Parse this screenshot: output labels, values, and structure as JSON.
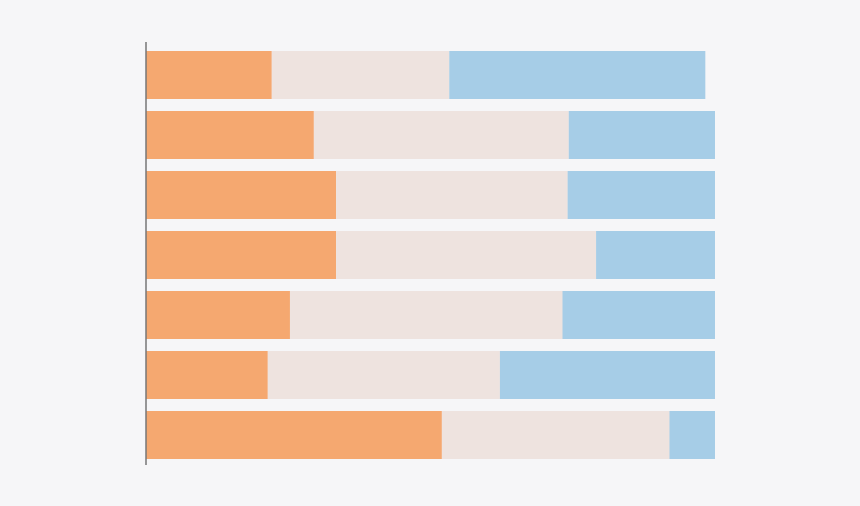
{
  "chart_data": {
    "type": "bar",
    "orientation": "horizontal",
    "stacked": true,
    "title": "",
    "xlabel": "",
    "ylabel": "",
    "legend": "none",
    "grid": false,
    "xlim": [
      0,
      100
    ],
    "categories": [
      "",
      "",
      "",
      "",
      "",
      "",
      ""
    ],
    "series": [
      {
        "color": "#f5a870",
        "values": [
          22.1,
          29.5,
          33.4,
          33.4,
          25.3,
          21.4,
          52
        ]
      },
      {
        "color": "#eee3df",
        "values": [
          31.2,
          44.8,
          40.7,
          45.7,
          47.9,
          40.8,
          40
        ]
      },
      {
        "color": "#a6cde7",
        "values": [
          45.0,
          25.7,
          25.9,
          20.9,
          26.8,
          37.8,
          8.0
        ]
      }
    ]
  }
}
